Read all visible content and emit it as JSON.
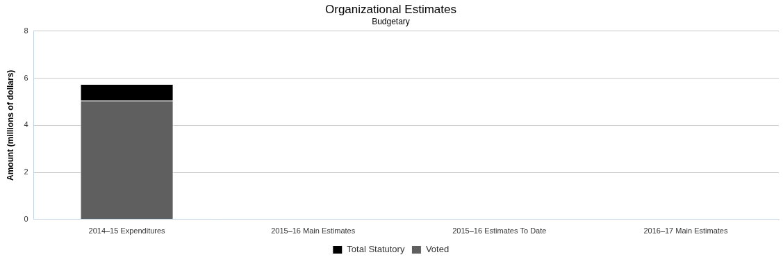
{
  "chart_data": {
    "type": "bar",
    "title": "Organizational Estimates",
    "subtitle": "Budgetary",
    "y_label": "Amount (millions of dollars)",
    "categories": [
      "2014–15 Expenditures",
      "2015–16 Main Estimates",
      "2015–16 Estimates To Date",
      "2016–17 Main Estimates"
    ],
    "series": [
      {
        "name": "Total Statutory",
        "color": "#000000",
        "values": [
          0.7,
          null,
          null,
          null
        ]
      },
      {
        "name": "Voted",
        "color": "#5f5f5f",
        "values": [
          5.05,
          null,
          null,
          null
        ]
      }
    ],
    "stacked": true,
    "ylim": [
      0,
      8
    ],
    "yticks": [
      0,
      2,
      4,
      6,
      8
    ],
    "grid": true,
    "legend": "bottom"
  }
}
